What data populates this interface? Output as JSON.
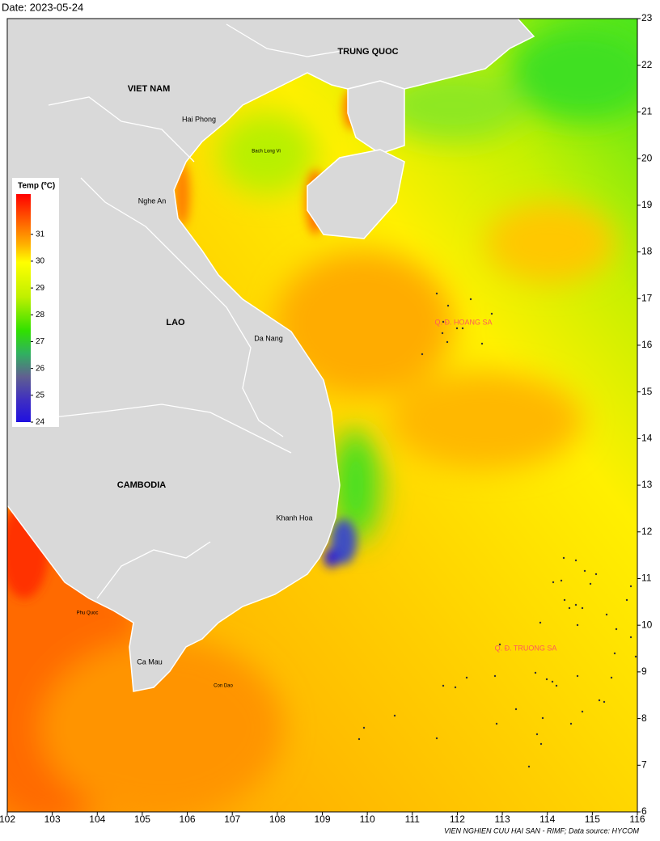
{
  "date": "Date: 2023-05-24",
  "map": {
    "xlim": [
      102,
      116
    ],
    "ylim": [
      6,
      23
    ],
    "xticks": [
      102,
      103,
      104,
      105,
      106,
      107,
      108,
      109,
      110,
      111,
      112,
      113,
      114,
      115,
      116
    ],
    "yticks": [
      6,
      7,
      8,
      9,
      10,
      11,
      12,
      13,
      14,
      15,
      16,
      17,
      18,
      19,
      20,
      21,
      22,
      23
    ],
    "places": [
      "TRUNG QUOC",
      "VIET NAM",
      "Hai Phong",
      "Bach Long Vi",
      "Nghe An",
      "LAO",
      "Da Nang",
      "CAMBODIA",
      "Khanh Hoa",
      "Phu Quoc",
      "Ca Mau",
      "Con Dao",
      "Q. Đ. HOANG SA",
      "Q. Đ. TRUONG SA"
    ]
  },
  "colorbar": {
    "title": "Temp (ºC)",
    "lim": [
      24,
      32.5
    ],
    "ticks": [
      24,
      25,
      26,
      27,
      28,
      29,
      30,
      31
    ]
  },
  "footer": "VIEN NGHIEN CUU HAI SAN - RIMF; Data source: HYCOM"
}
